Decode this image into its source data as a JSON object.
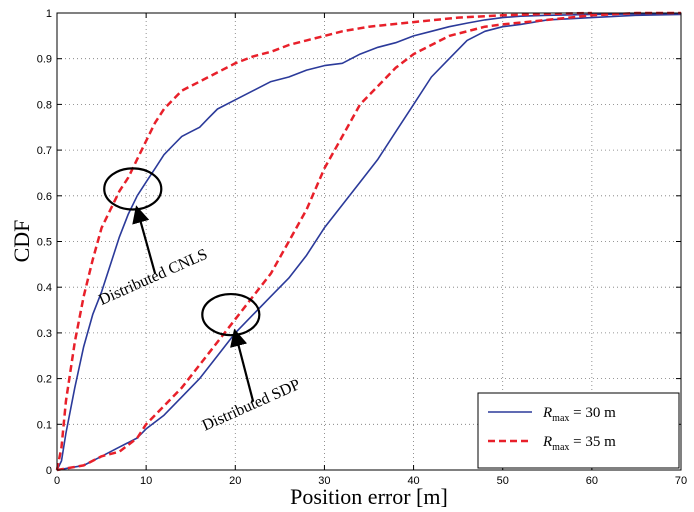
{
  "chart_data": {
    "type": "line",
    "xlabel": "Position error [m]",
    "ylabel": "CDF",
    "xlim": [
      0,
      70
    ],
    "ylim": [
      0,
      1
    ],
    "x_ticks": [
      "0",
      "10",
      "20",
      "30",
      "40",
      "50",
      "60",
      "70"
    ],
    "y_ticks": [
      "0",
      "0.1",
      "0.2",
      "0.3",
      "0.4",
      "0.5",
      "0.6",
      "0.7",
      "0.8",
      "0.9",
      "1"
    ],
    "grid": true,
    "legend_position": "bottom-right",
    "colors": {
      "solid": "#2b3a9a",
      "dashed": "#e8202a"
    },
    "series": [
      {
        "legend": {
          "symbol": "R",
          "subscript": "max",
          "rest": " = 30 m"
        },
        "style": "solid",
        "curves": [
          {
            "group": "Distributed CNLS",
            "points": [
              [
                0,
                0
              ],
              [
                0.5,
                0.02
              ],
              [
                1,
                0.08
              ],
              [
                2,
                0.18
              ],
              [
                3,
                0.27
              ],
              [
                4,
                0.34
              ],
              [
                5,
                0.39
              ],
              [
                6,
                0.45
              ],
              [
                7,
                0.51
              ],
              [
                8,
                0.56
              ],
              [
                9,
                0.6
              ],
              [
                10,
                0.63
              ],
              [
                11,
                0.66
              ],
              [
                12,
                0.69
              ],
              [
                13,
                0.71
              ],
              [
                14,
                0.73
              ],
              [
                15,
                0.74
              ],
              [
                16,
                0.75
              ],
              [
                17,
                0.77
              ],
              [
                18,
                0.79
              ],
              [
                20,
                0.81
              ],
              [
                22,
                0.83
              ],
              [
                24,
                0.85
              ],
              [
                26,
                0.86
              ],
              [
                28,
                0.875
              ],
              [
                30,
                0.885
              ],
              [
                32,
                0.89
              ],
              [
                34,
                0.91
              ],
              [
                36,
                0.925
              ],
              [
                38,
                0.935
              ],
              [
                40,
                0.95
              ],
              [
                42,
                0.96
              ],
              [
                44,
                0.97
              ],
              [
                46,
                0.978
              ],
              [
                48,
                0.985
              ],
              [
                50,
                0.99
              ],
              [
                52,
                0.993
              ],
              [
                55,
                0.995
              ],
              [
                60,
                0.997
              ],
              [
                65,
                0.998
              ],
              [
                70,
                0.998
              ]
            ]
          },
          {
            "group": "Distributed SDP",
            "points": [
              [
                0,
                0
              ],
              [
                3,
                0.01
              ],
              [
                5,
                0.03
              ],
              [
                7,
                0.05
              ],
              [
                9,
                0.07
              ],
              [
                10,
                0.09
              ],
              [
                12,
                0.12
              ],
              [
                14,
                0.16
              ],
              [
                16,
                0.2
              ],
              [
                18,
                0.25
              ],
              [
                20,
                0.3
              ],
              [
                22,
                0.34
              ],
              [
                24,
                0.38
              ],
              [
                26,
                0.42
              ],
              [
                28,
                0.47
              ],
              [
                30,
                0.53
              ],
              [
                32,
                0.58
              ],
              [
                34,
                0.63
              ],
              [
                36,
                0.68
              ],
              [
                38,
                0.74
              ],
              [
                40,
                0.8
              ],
              [
                42,
                0.86
              ],
              [
                44,
                0.9
              ],
              [
                46,
                0.94
              ],
              [
                48,
                0.96
              ],
              [
                50,
                0.97
              ],
              [
                52,
                0.975
              ],
              [
                55,
                0.985
              ],
              [
                60,
                0.99
              ],
              [
                65,
                0.995
              ],
              [
                70,
                0.997
              ]
            ]
          }
        ]
      },
      {
        "legend": {
          "symbol": "R",
          "subscript": "max",
          "rest": " = 35 m"
        },
        "style": "dashed",
        "curves": [
          {
            "group": "Distributed CNLS",
            "points": [
              [
                0,
                0
              ],
              [
                0.5,
                0.05
              ],
              [
                1,
                0.15
              ],
              [
                2,
                0.28
              ],
              [
                3,
                0.38
              ],
              [
                4,
                0.46
              ],
              [
                5,
                0.53
              ],
              [
                6,
                0.57
              ],
              [
                7,
                0.61
              ],
              [
                8,
                0.64
              ],
              [
                9,
                0.68
              ],
              [
                10,
                0.72
              ],
              [
                11,
                0.76
              ],
              [
                12,
                0.79
              ],
              [
                13,
                0.81
              ],
              [
                14,
                0.83
              ],
              [
                15,
                0.84
              ],
              [
                16,
                0.85
              ],
              [
                18,
                0.87
              ],
              [
                20,
                0.89
              ],
              [
                22,
                0.905
              ],
              [
                24,
                0.915
              ],
              [
                26,
                0.93
              ],
              [
                28,
                0.94
              ],
              [
                30,
                0.95
              ],
              [
                32,
                0.96
              ],
              [
                35,
                0.97
              ],
              [
                40,
                0.98
              ],
              [
                45,
                0.99
              ],
              [
                50,
                0.995
              ],
              [
                55,
                0.998
              ],
              [
                60,
                1.0
              ]
            ]
          },
          {
            "group": "Distributed SDP",
            "points": [
              [
                0,
                0
              ],
              [
                3,
                0.01
              ],
              [
                5,
                0.03
              ],
              [
                7,
                0.04
              ],
              [
                9,
                0.07
              ],
              [
                10,
                0.1
              ],
              [
                12,
                0.14
              ],
              [
                14,
                0.18
              ],
              [
                16,
                0.23
              ],
              [
                18,
                0.28
              ],
              [
                20,
                0.33
              ],
              [
                22,
                0.38
              ],
              [
                24,
                0.43
              ],
              [
                26,
                0.5
              ],
              [
                28,
                0.57
              ],
              [
                30,
                0.66
              ],
              [
                32,
                0.73
              ],
              [
                34,
                0.8
              ],
              [
                36,
                0.84
              ],
              [
                38,
                0.88
              ],
              [
                40,
                0.91
              ],
              [
                42,
                0.93
              ],
              [
                44,
                0.95
              ],
              [
                46,
                0.96
              ],
              [
                48,
                0.97
              ],
              [
                50,
                0.975
              ],
              [
                55,
                0.985
              ],
              [
                60,
                0.995
              ],
              [
                65,
                1.0
              ],
              [
                70,
                1.0
              ]
            ]
          }
        ]
      }
    ],
    "annotations": [
      {
        "text": "Distributed CNLS",
        "ellipse_center": [
          8.5,
          0.615
        ],
        "ellipse_radii": [
          3.2,
          0.045
        ],
        "arrow_from": [
          11,
          0.43
        ],
        "arrow_to": [
          9,
          0.57
        ]
      },
      {
        "text": "Distributed SDP",
        "ellipse_center": [
          19.5,
          0.34
        ],
        "ellipse_radii": [
          3.2,
          0.045
        ],
        "arrow_from": [
          22,
          0.15
        ],
        "arrow_to": [
          20,
          0.3
        ]
      }
    ]
  }
}
